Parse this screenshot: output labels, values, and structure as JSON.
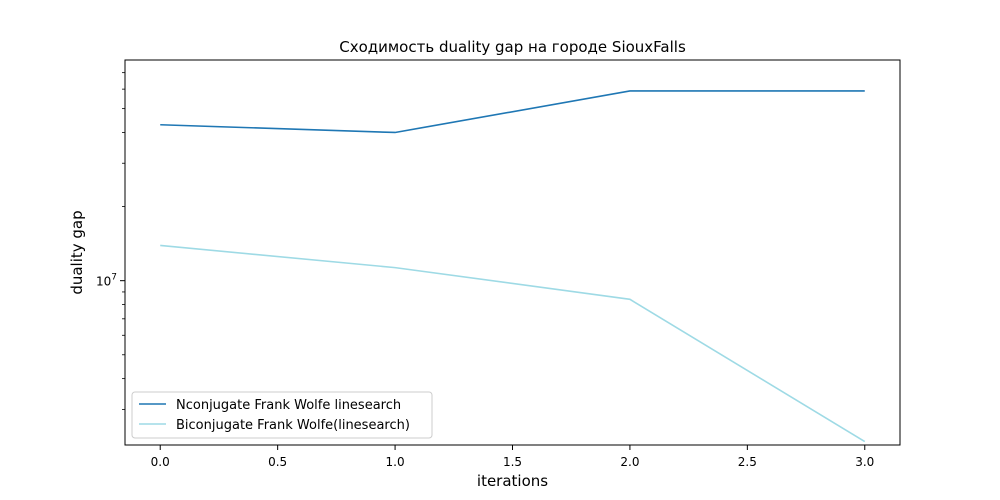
{
  "chart_data": {
    "type": "line",
    "title": "Сходимость duality gap на городе SiouxFalls",
    "xlabel": "iterations",
    "ylabel": "duality gap",
    "x": [
      0,
      1,
      2,
      3
    ],
    "xlim": [
      -0.15,
      3.15
    ],
    "xticks": [
      0.0,
      0.5,
      1.0,
      1.5,
      2.0,
      2.5,
      3.0
    ],
    "xtick_labels": [
      "0.0",
      "0.5",
      "1.0",
      "1.5",
      "2.0",
      "2.5",
      "3.0"
    ],
    "y_scale": "log",
    "ylim": [
      2150000.0,
      78800000
    ],
    "yticks_major": [
      10000000
    ],
    "ytick_major_label": {
      "base": "10",
      "exp": "7"
    },
    "yticks_minor": [
      3000000,
      4000000,
      5000000,
      6000000,
      7000000,
      8000000,
      9000000,
      20000000,
      30000000,
      40000000,
      50000000,
      60000000,
      70000000
    ],
    "grid": false,
    "legend_position": "lower-left",
    "series": [
      {
        "name": "Nconjugate Frank Wolfe linesearch",
        "color": "#1f77b4",
        "values": [
          43000000,
          40000000,
          59000000,
          59000000
        ]
      },
      {
        "name": "Biconjugate Frank Wolfe(linesearch)",
        "color": "#9edae5",
        "values": [
          13900000,
          11300000,
          8400000,
          2220000
        ]
      }
    ]
  }
}
